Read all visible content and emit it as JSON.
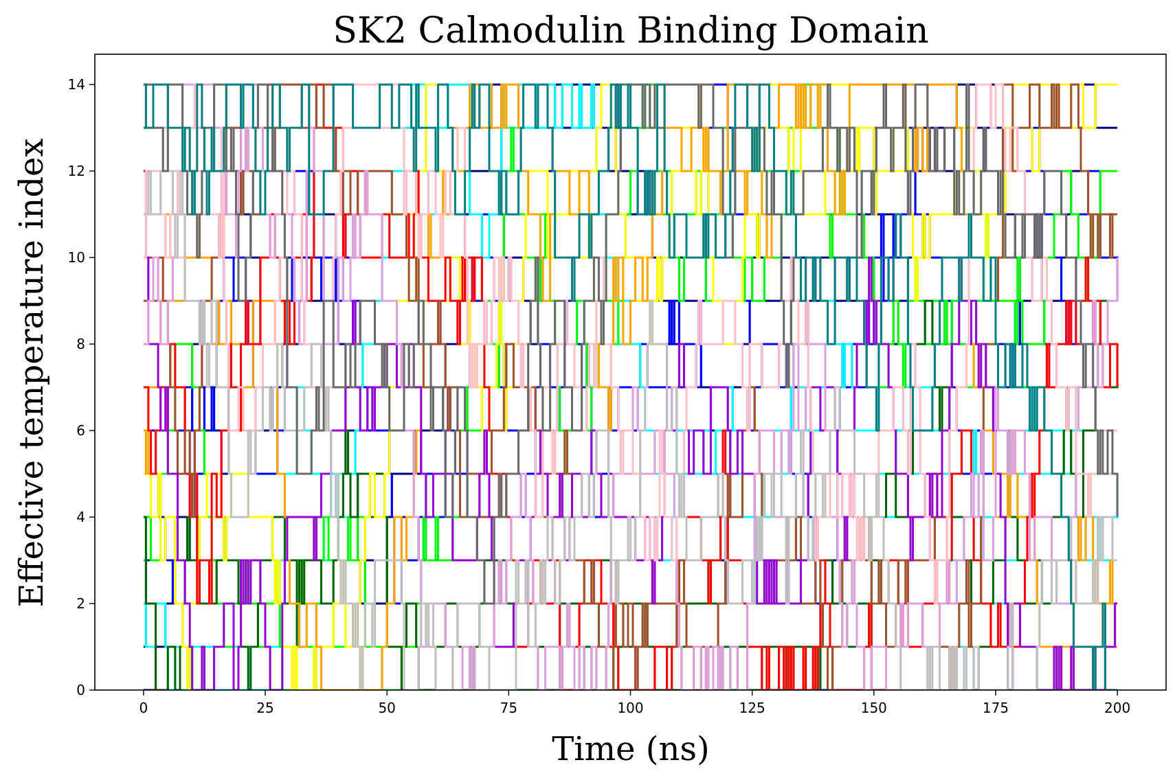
{
  "chart_data": {
    "type": "line",
    "title": "SK2 Calmodulin Binding Domain",
    "xlabel": "Time (ns)",
    "ylabel": "Effective temperature index",
    "xlim": [
      -10,
      210
    ],
    "ylim": [
      0,
      14.7
    ],
    "xticks": [
      0,
      25,
      50,
      75,
      100,
      125,
      150,
      175,
      200
    ],
    "yticks": [
      0,
      2,
      4,
      6,
      8,
      10,
      12,
      14
    ],
    "grid": false,
    "legend": "none",
    "series_description": "15 replica trajectories hopping between integer temperature indices 0-14 over 0-200 ns",
    "series_colors": [
      "#000080",
      "#0000ff",
      "#00ffff",
      "#00ff00",
      "#006400",
      "#ffff00",
      "#ffa500",
      "#ff0000",
      "#a0522d",
      "#9400d3",
      "#dda0dd",
      "#ffc0cb",
      "#c0c0c0",
      "#696969",
      "#008080"
    ],
    "time_range": [
      0,
      200
    ],
    "index_range": [
      0,
      14
    ]
  }
}
